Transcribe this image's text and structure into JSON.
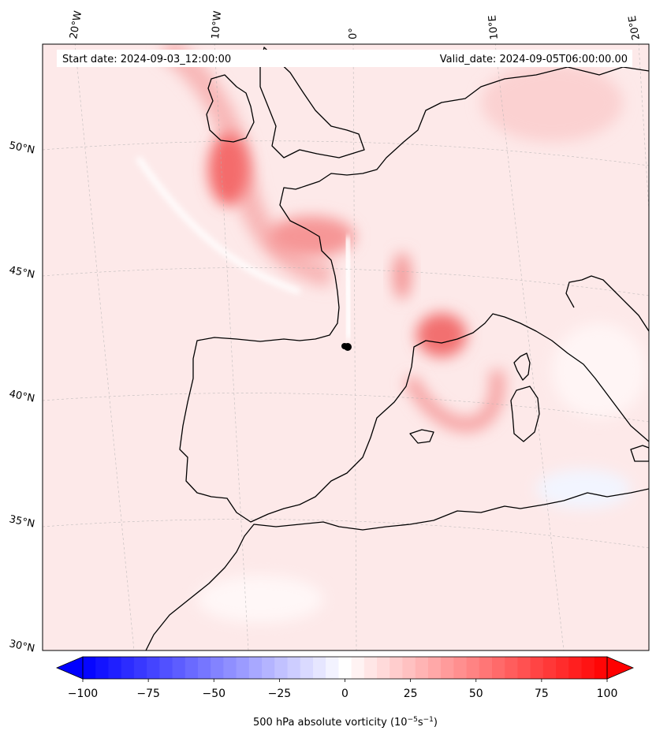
{
  "map": {
    "start_label": "Start date: 2024-09-03_12:00:00",
    "valid_label": "Valid_date: 2024-09-05T06:00:00.00",
    "lon_labels": [
      "20°W",
      "10°W",
      "0°",
      "10°E",
      "20°E"
    ],
    "lat_labels": [
      "50°N",
      "45°N",
      "40°N",
      "35°N",
      "30°N"
    ],
    "marker": "black-dot"
  },
  "colorbar": {
    "ticks": [
      "−100",
      "−75",
      "−50",
      "−25",
      "0",
      "25",
      "50",
      "75",
      "100"
    ],
    "range": [
      -100,
      100
    ],
    "levels": 41,
    "low_color": "#0000ff",
    "mid_color": "#ffffff",
    "high_color": "#ff0000",
    "label_prefix": "500 hPa absolute vorticity (10",
    "label_exp1": "−5",
    "label_mid": "s",
    "label_exp2": "−1",
    "label_suffix": ")"
  }
}
